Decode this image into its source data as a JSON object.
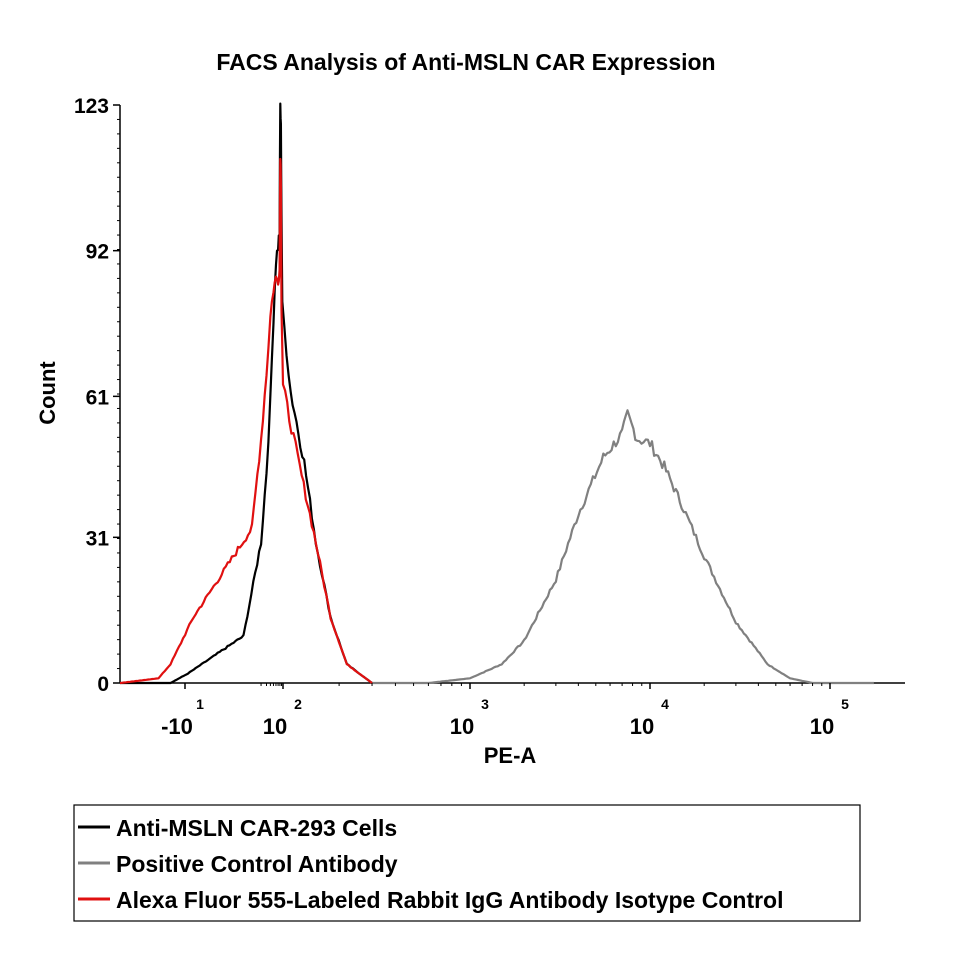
{
  "chart_data": {
    "type": "line",
    "title": "FACS Analysis of Anti-MSLN CAR Expression",
    "xlabel": "PE-A",
    "ylabel": "Count",
    "y_ticks": [
      "0",
      "31",
      "61",
      "92",
      "123"
    ],
    "ylim": [
      0,
      123
    ],
    "x_ticks": [
      {
        "base": "-10",
        "exp": "1",
        "value": -10
      },
      {
        "base": "10",
        "exp": "2",
        "value": 100
      },
      {
        "base": "10",
        "exp": "3",
        "value": 1000
      },
      {
        "base": "10",
        "exp": "4",
        "value": 10000
      },
      {
        "base": "10",
        "exp": "5",
        "value": 100000
      }
    ],
    "x_scale": "biexponential",
    "grid": false,
    "legend_position": "bottom",
    "series": [
      {
        "name": "Anti-MSLN CAR-293 Cells",
        "color": "#000000",
        "points": [
          [
            -200,
            0
          ],
          [
            -20,
            0
          ],
          [
            -8,
            2
          ],
          [
            5,
            10
          ],
          [
            20,
            30
          ],
          [
            30,
            45
          ],
          [
            40,
            60
          ],
          [
            50,
            78
          ],
          [
            60,
            90
          ],
          [
            70,
            93
          ],
          [
            78,
            96
          ],
          [
            82,
            123
          ],
          [
            86,
            118
          ],
          [
            90,
            100
          ],
          [
            95,
            80
          ],
          [
            110,
            62
          ],
          [
            130,
            47
          ],
          [
            150,
            30
          ],
          [
            180,
            14
          ],
          [
            220,
            4
          ],
          [
            300,
            0
          ]
        ]
      },
      {
        "name": "Positive Control Antibody",
        "color": "#808080",
        "points": [
          [
            300,
            0
          ],
          [
            600,
            0
          ],
          [
            1000,
            1
          ],
          [
            1500,
            4
          ],
          [
            2000,
            9
          ],
          [
            3000,
            22
          ],
          [
            4000,
            36
          ],
          [
            5500,
            48
          ],
          [
            7000,
            53
          ],
          [
            7500,
            57
          ],
          [
            8500,
            52
          ],
          [
            10000,
            51
          ],
          [
            12000,
            46
          ],
          [
            15000,
            38
          ],
          [
            20000,
            27
          ],
          [
            30000,
            13
          ],
          [
            45000,
            4
          ],
          [
            60000,
            1
          ],
          [
            80000,
            0
          ],
          [
            150000,
            0
          ]
        ]
      },
      {
        "name": "Alexa Fluor 555-Labeled Rabbit IgG Antibody Isotype Control",
        "color": "#e01010",
        "points": [
          [
            -200,
            0
          ],
          [
            -35,
            1
          ],
          [
            -20,
            4
          ],
          [
            -5,
            14
          ],
          [
            10,
            33
          ],
          [
            20,
            52
          ],
          [
            30,
            66
          ],
          [
            40,
            78
          ],
          [
            50,
            84
          ],
          [
            60,
            86
          ],
          [
            70,
            86
          ],
          [
            78,
            88
          ],
          [
            82,
            113
          ],
          [
            86,
            107
          ],
          [
            90,
            80
          ],
          [
            100,
            63
          ],
          [
            120,
            48
          ],
          [
            150,
            30
          ],
          [
            180,
            14
          ],
          [
            220,
            4
          ],
          [
            300,
            0
          ]
        ]
      }
    ]
  }
}
